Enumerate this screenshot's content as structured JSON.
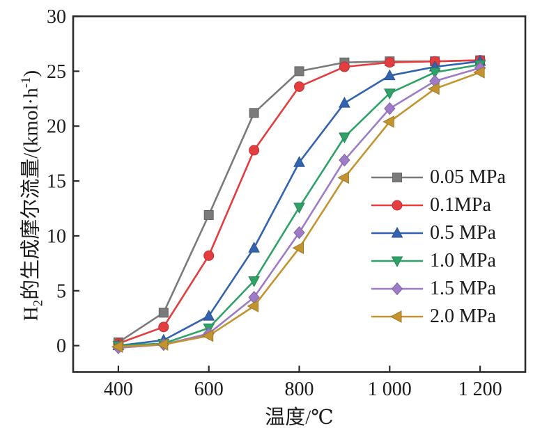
{
  "figure": {
    "background": "#ffffff",
    "frame_color": "#2b2b2b",
    "text_color": "#1a1a1a"
  },
  "chart_data": {
    "type": "line",
    "title": "",
    "xlabel": "温度/℃",
    "ylabel": "H2的生成摩尔流量/(kmol·h-1)",
    "ylabel_parts": {
      "prefix": "H",
      "sub": "2",
      "mid": "的生成摩尔流量/(kmol·h",
      "sup": "-1",
      "suffix": ")"
    },
    "x": [
      400,
      500,
      600,
      700,
      800,
      900,
      1000,
      1100,
      1200
    ],
    "x_ticks": [
      400,
      600,
      800,
      1000,
      1200
    ],
    "x_tick_labels": [
      "400",
      "600",
      "800",
      "1 000",
      "1 200"
    ],
    "y_ticks": [
      0,
      5,
      10,
      15,
      20,
      25,
      30
    ],
    "y_tick_labels": [
      "0",
      "5",
      "10",
      "15",
      "20",
      "25",
      "30"
    ],
    "xlim": [
      300,
      1300
    ],
    "ylim": [
      -2.4,
      30
    ],
    "grid": false,
    "legend_position": "right-middle",
    "series": [
      {
        "name": "0.05 MPa",
        "color": "#7a7a7a",
        "marker": "square",
        "values": [
          0.3,
          3.0,
          11.9,
          21.2,
          25.0,
          25.8,
          25.9,
          25.9,
          26.0
        ]
      },
      {
        "name": "0.1MPa",
        "color": "#e43d40",
        "marker": "circle",
        "values": [
          0.2,
          1.7,
          8.2,
          17.8,
          23.6,
          25.4,
          25.8,
          25.9,
          26.0
        ]
      },
      {
        "name": "0.5 MPa",
        "color": "#3363ae",
        "marker": "triangle-up",
        "values": [
          0.0,
          0.5,
          2.7,
          8.9,
          16.7,
          22.1,
          24.6,
          25.4,
          25.9
        ]
      },
      {
        "name": "1.0 MPa",
        "color": "#2fa268",
        "marker": "triangle-down",
        "values": [
          0.0,
          0.2,
          1.6,
          5.9,
          12.6,
          19.0,
          23.0,
          24.9,
          25.6
        ]
      },
      {
        "name": "1.5 MPa",
        "color": "#9d7bc6",
        "marker": "diamond",
        "values": [
          -0.2,
          0.1,
          1.1,
          4.4,
          10.3,
          16.9,
          21.6,
          24.1,
          25.3
        ]
      },
      {
        "name": "2.0 MPa",
        "color": "#c3932f",
        "marker": "triangle-left",
        "values": [
          -0.1,
          0.1,
          0.9,
          3.6,
          8.9,
          15.3,
          20.4,
          23.4,
          24.9
        ]
      }
    ]
  }
}
